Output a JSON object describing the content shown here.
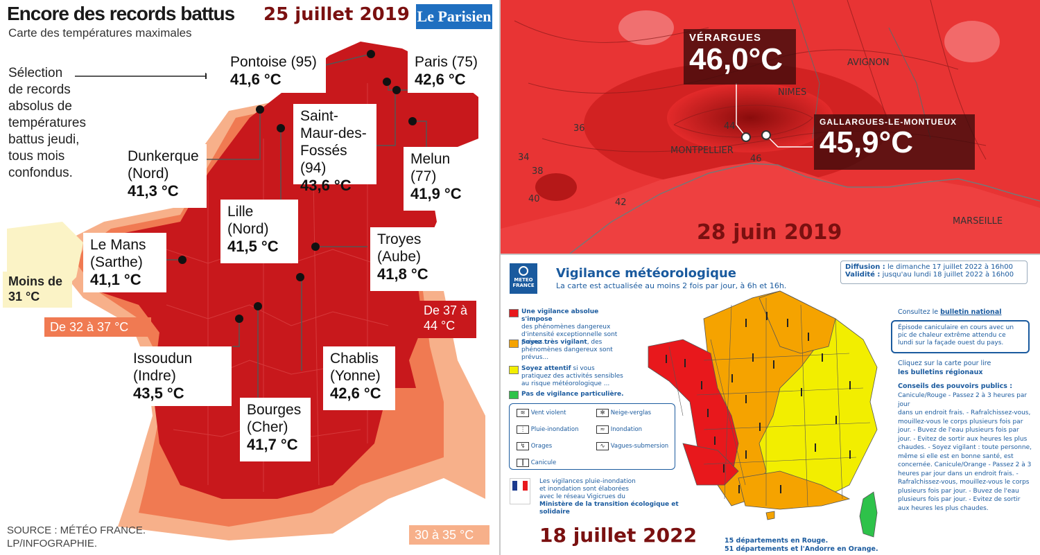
{
  "left_panel": {
    "title": "Encore des records battus",
    "date": "25 juillet 2019",
    "logo": "Le Parisien",
    "subtitle": "Carte des températures maximales",
    "selection_lines": [
      "Sélection",
      "de records",
      "absolus de",
      "températures",
      "battus jeudi,",
      "tous mois",
      "confondus."
    ],
    "callouts": [
      {
        "name": "Pontoise (95)",
        "value": "41,6 °C"
      },
      {
        "name": "Paris (75)",
        "value": "42,6 °C"
      },
      {
        "name": "Saint-Maur-des-Fossés (94)",
        "value": "43,6 °C"
      },
      {
        "name": "Melun (77)",
        "value": "41,9 °C"
      },
      {
        "name": "Dunkerque (Nord)",
        "value": "41,3 °C"
      },
      {
        "name": "Lille (Nord)",
        "value": "41,5 °C"
      },
      {
        "name": "Troyes (Aube)",
        "value": "41,8 °C"
      },
      {
        "name": "Le Mans (Sarthe)",
        "value": "41,1 °C"
      },
      {
        "name": "Issoudun (Indre)",
        "value": "43,5 °C"
      },
      {
        "name": "Chablis (Yonne)",
        "value": "42,6 °C"
      },
      {
        "name": "Bourges (Cher)",
        "value": "41,7 °C"
      }
    ],
    "legend": {
      "cold": "Moins de 31 °C",
      "mid": "De 32 à 37 °C",
      "hot": "De 37 à 44 °C",
      "coast": "30 à 35 °C"
    },
    "source_lines": [
      "SOURCE : MÉTÉO FRANCE.",
      "LP/INFOGRAPHIE."
    ],
    "colors": {
      "hot": "#c8181c",
      "mid": "#f07a52",
      "light": "#f7b08a",
      "cold": "#fbf3c6"
    }
  },
  "top_right": {
    "date": "28 juin 2019",
    "stations": [
      {
        "name": "VÉRARGUES",
        "value": "46,0°C"
      },
      {
        "name": "GALLARGUES-LE-MONTUEUX",
        "value": "45,9°C"
      }
    ],
    "cities": [
      "AVIGNON",
      "NIMES",
      "MONTPELLIER",
      "MARSEILLE"
    ],
    "isolines": [
      "36",
      "34",
      "38",
      "40",
      "42",
      "44",
      "46"
    ]
  },
  "bottom_right": {
    "logo": "METEO FRANCE",
    "title": "Vigilance météorologique",
    "subtitle": "La carte est actualisée au moins 2 fois par jour, à 6h et 16h.",
    "diffusion_label": "Diffusion :",
    "diffusion": "le dimanche 17 juillet 2022 à 16h00",
    "validite_label": "Validité :",
    "validite": "jusqu'au lundi 18 juillet 2022 à 16h00",
    "levels": [
      {
        "bold": "Une vigilance absolue s'impose",
        "rest": "des phénomènes dangereux d'intensité exceptionnelle sont prévus...",
        "color": "#e8181c"
      },
      {
        "bold": "Soyez très vigilant",
        "rest": ", des phénomènes dangereux sont prévus...",
        "color": "#f5a300"
      },
      {
        "bold": "Soyez attentif",
        "rest": "si vous pratiquez des activités sensibles au risque météorologique ...",
        "color": "#f2ee00"
      },
      {
        "bold": "Pas de vigilance particulière.",
        "rest": "",
        "color": "#2ec24a"
      }
    ],
    "phenomena": [
      "Vent violent",
      "Neige-verglas",
      "Pluie-inondation",
      "Inondation",
      "Orages",
      "Vagues-submersion",
      "Canicule"
    ],
    "vigicrues": [
      "Les vigilances pluie-inondation",
      "et inondation sont élaborées",
      "avec le réseau Vigicrues du",
      "Ministère de la transition écologique et solidaire"
    ],
    "consult": "Consultez le",
    "consult_link": "bulletin national",
    "episode": "Épisode caniculaire en cours avec un pic de chaleur extrême attendu ce lundi sur la façade ouest du pays.",
    "click": "Cliquez sur la carte pour lire",
    "click_link": "les bulletins régionaux",
    "conseils_title": "Conseils des pouvoirs publics :",
    "conseils_lines": [
      "Canicule/Rouge - Passez 2 à 3 heures par jour",
      "dans un endroit frais. - Rafraîchissez-vous,",
      "mouillez-vous le corps plusieurs fois par",
      "jour. - Buvez de l'eau plusieurs fois par",
      "jour. - Evitez de sortir aux heures les plus",
      "chaudes. - Soyez vigilant : toute personne,",
      "même si elle est en bonne santé, est",
      "concernée. Canicule/Orange - Passez 2 à 3",
      "heures par jour dans un endroit frais. -",
      "Rafraîchissez-vous, mouillez-vous le corps",
      "plusieurs fois par jour. - Buvez de l'eau",
      "plusieurs fois par jour. - Evitez de sortir",
      "aux heures les plus chaudes."
    ],
    "counts": [
      "15 départements en Rouge.",
      "51 départements et l'Andorre en Orange."
    ],
    "date": "18 juillet 2022"
  }
}
